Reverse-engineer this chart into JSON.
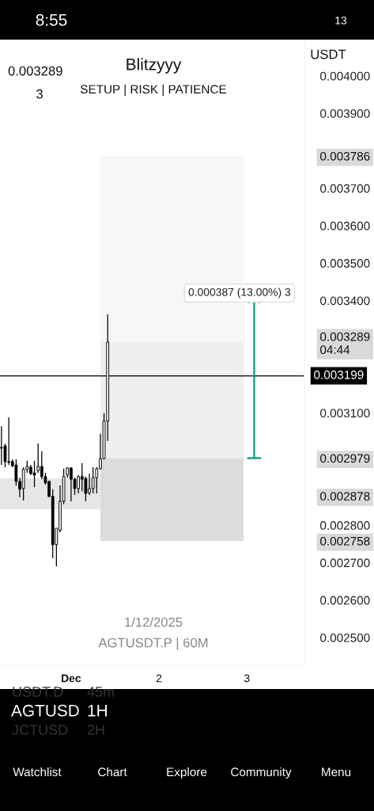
{
  "chart_data": {
    "type": "candlestick",
    "title": "Blitzyyy",
    "subtitle": "SETUP | RISK | PATIENCE",
    "x": [
      "2025-11-30T05:00",
      "2025-11-30T06:00",
      "2025-11-30T07:00",
      "2025-11-30T08:00",
      "2025-11-30T09:00",
      "2025-11-30T10:00",
      "2025-11-30T11:00",
      "2025-11-30T12:00",
      "2025-11-30T13:00",
      "2025-11-30T14:00",
      "2025-11-30T15:00",
      "2025-11-30T16:00",
      "2025-11-30T17:00",
      "2025-11-30T18:00",
      "2025-11-30T19:00",
      "2025-11-30T20:00",
      "2025-11-30T21:00",
      "2025-11-30T22:00",
      "2025-11-30T23:00",
      "2025-12-01T00:00",
      "2025-12-01T01:00",
      "2025-12-01T02:00",
      "2025-12-01T03:00",
      "2025-12-01T04:00",
      "2025-12-01T05:00",
      "2025-12-01T06:00",
      "2025-12-01T07:00",
      "2025-12-01T08:00",
      "2025-12-01T09:00",
      "2025-12-01T10:00"
    ],
    "ohlc": [
      [
        0.003006,
        0.003065,
        0.002961,
        0.003008
      ],
      [
        0.003012,
        0.003018,
        0.002955,
        0.00297
      ],
      [
        0.00297,
        0.003088,
        0.002961,
        0.002968
      ],
      [
        0.00297,
        0.002976,
        0.002955,
        0.002959
      ],
      [
        0.002961,
        0.002976,
        0.002906,
        0.002917
      ],
      [
        0.002917,
        0.002927,
        0.002875,
        0.002896
      ],
      [
        0.002898,
        0.002955,
        0.002866,
        0.002949
      ],
      [
        0.002949,
        0.002972,
        0.00294,
        0.002957
      ],
      [
        0.002955,
        0.002961,
        0.002934,
        0.002938
      ],
      [
        0.00294,
        0.002972,
        0.002902,
        0.002934
      ],
      [
        0.002946,
        0.003018,
        0.00294,
        0.002957
      ],
      [
        0.002957,
        0.002997,
        0.002923,
        0.00293
      ],
      [
        0.00293,
        0.00294,
        0.002908,
        0.002913
      ],
      [
        0.002917,
        0.002919,
        0.002875,
        0.002877
      ],
      [
        0.002877,
        0.002896,
        0.002712,
        0.002748
      ],
      [
        0.002748,
        0.002792,
        0.00269,
        0.002792
      ],
      [
        0.002786,
        0.002906,
        0.002781,
        0.002864
      ],
      [
        0.002864,
        0.002951,
        0.002856,
        0.00293
      ],
      [
        0.002934,
        0.002955,
        0.002927,
        0.002953
      ],
      [
        0.002953,
        0.002955,
        0.002864,
        0.002923
      ],
      [
        0.002923,
        0.002927,
        0.002881,
        0.002898
      ],
      [
        0.002898,
        0.002934,
        0.002885,
        0.00293
      ],
      [
        0.00293,
        0.002966,
        0.002891,
        0.002923
      ],
      [
        0.002925,
        0.00293,
        0.002864,
        0.002885
      ],
      [
        0.002887,
        0.002938,
        0.002881,
        0.002898
      ],
      [
        0.002898,
        0.002955,
        0.002885,
        0.002927
      ],
      [
        0.002927,
        0.002955,
        0.002885,
        0.002951
      ],
      [
        0.002951,
        0.003044,
        0.002949,
        0.002978
      ],
      [
        0.002978,
        0.003099,
        0.002976,
        0.003078
      ],
      [
        0.003078,
        0.003363,
        0.003025,
        0.003289
      ]
    ],
    "xlim": [
      "2025-11-30T04:36",
      "2025-12-03T15:42"
    ],
    "xticks": [
      {
        "value": "2025-12-01",
        "label": "Dec"
      },
      {
        "value": "2025-12-02",
        "label": "2"
      },
      {
        "value": "2025-12-03",
        "label": "3"
      }
    ],
    "ylim": [
      0.002426,
      0.004097
    ],
    "yticks": [
      {
        "value": 0.0025,
        "label": "0.002500"
      },
      {
        "value": 0.0026,
        "label": "0.002600"
      },
      {
        "value": 0.0027,
        "label": "0.002700"
      },
      {
        "value": 0.002758,
        "label": "0.002758"
      },
      {
        "value": 0.0028,
        "label": "0.002800"
      },
      {
        "value": 0.002878,
        "label": "0.002878"
      },
      {
        "value": 0.002979,
        "label": "0.002979"
      },
      {
        "value": 0.0031,
        "label": "0.003100"
      },
      {
        "value": 0.003289,
        "label": "0.003289\n04:44"
      },
      {
        "value": 0.0034,
        "label": "0.003400"
      },
      {
        "value": 0.0035,
        "label": "0.003500"
      },
      {
        "value": 0.0036,
        "label": "0.003600"
      },
      {
        "value": 0.0037,
        "label": "0.003700"
      },
      {
        "value": 0.003786,
        "label": "0.003786"
      },
      {
        "value": 0.0039,
        "label": "0.003900"
      },
      {
        "value": 0.004,
        "label": "0.004000"
      }
    ],
    "bands": [
      {
        "axis": "y",
        "from": 0.002979,
        "to": 0.003786,
        "color": "#f7f7f7"
      },
      {
        "axis": "y",
        "from": 0.002979,
        "to": 0.003289,
        "color": "#efefef"
      },
      {
        "axis": "y",
        "from": 0.002758,
        "to": 0.002979,
        "color": "#dcdcdc"
      },
      {
        "axis": "y",
        "from": 0.002843,
        "to": 0.002925,
        "color": "#e6e6e6"
      }
    ],
    "ref_lines": [
      {
        "axis": "y",
        "value": 0.003199,
        "label": "0.003199",
        "color": "#000000"
      }
    ],
    "annotations": [
      "0.000387 (13.00%) 3",
      "8:55",
      "13",
      "0.003289",
      "3",
      "USDT",
      "1/12/2025",
      "AGTUSDT.P | 60M",
      "USDT.D",
      "45m",
      "AGTUSD",
      "1H",
      "JCTUSD",
      "2H",
      "Watchlist",
      "Chart",
      "Explore",
      "Community",
      "Menu"
    ],
    "grid": false,
    "legend": false
  }
}
